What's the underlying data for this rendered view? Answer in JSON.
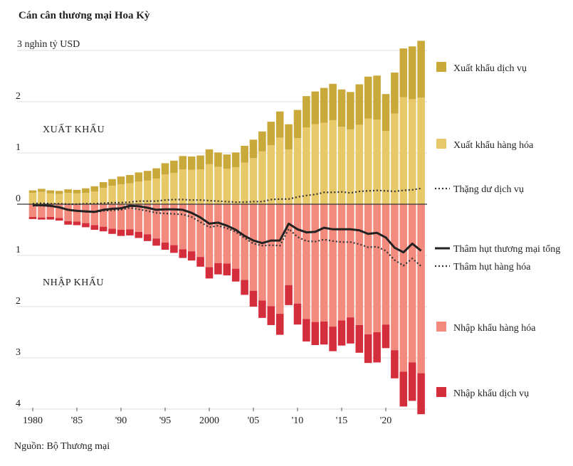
{
  "title": "Cán cân thương mại Hoa Kỳ",
  "source": "Nguồn: Bộ Thương mại",
  "colors": {
    "services_exports": "#c9a93a",
    "goods_exports": "#e8c96a",
    "goods_imports": "#f28b7e",
    "services_imports": "#d42e3c",
    "total_deficit": "#222222",
    "dotted": "#333333",
    "grid": "#dddddd",
    "zero": "#333333"
  },
  "chart_data": {
    "type": "bar",
    "unit_label": "3 nghìn tỷ USD",
    "y_ticks": [
      {
        "value": 3,
        "label": ""
      },
      {
        "value": 2,
        "label": "2"
      },
      {
        "value": 1,
        "label": "1"
      },
      {
        "value": 0,
        "label": "0"
      },
      {
        "value": -1,
        "label": "1"
      },
      {
        "value": -2,
        "label": "2"
      },
      {
        "value": -3,
        "label": "3"
      },
      {
        "value": -4,
        "label": "4"
      }
    ],
    "ylim": [
      -4.1,
      3.2
    ],
    "x_ticks": [
      {
        "year": 1980,
        "label": "1980"
      },
      {
        "year": 1985,
        "label": "'85"
      },
      {
        "year": 1990,
        "label": "'90"
      },
      {
        "year": 1995,
        "label": "'95"
      },
      {
        "year": 2000,
        "label": "2000"
      },
      {
        "year": 2005,
        "label": "'05"
      },
      {
        "year": 2010,
        "label": "'10"
      },
      {
        "year": 2015,
        "label": "'15"
      },
      {
        "year": 2020,
        "label": "'20"
      }
    ],
    "annotations": {
      "exports": "XUẤT KHẨU",
      "imports": "NHẬP KHẨU"
    },
    "years": [
      1980,
      1981,
      1982,
      1983,
      1984,
      1985,
      1986,
      1987,
      1988,
      1989,
      1990,
      1991,
      1992,
      1993,
      1994,
      1995,
      1996,
      1997,
      1998,
      1999,
      2000,
      2001,
      2002,
      2003,
      2004,
      2005,
      2006,
      2007,
      2008,
      2009,
      2010,
      2011,
      2012,
      2013,
      2014,
      2015,
      2016,
      2017,
      2018,
      2019,
      2020,
      2021,
      2022,
      2023,
      2024
    ],
    "series": [
      {
        "name": "Xuất khẩu dịch vụ",
        "key": "services_exports",
        "values": [
          0.05,
          0.06,
          0.06,
          0.06,
          0.07,
          0.07,
          0.09,
          0.1,
          0.11,
          0.13,
          0.15,
          0.16,
          0.18,
          0.19,
          0.2,
          0.22,
          0.24,
          0.26,
          0.26,
          0.27,
          0.29,
          0.28,
          0.28,
          0.29,
          0.33,
          0.36,
          0.39,
          0.46,
          0.51,
          0.49,
          0.55,
          0.61,
          0.64,
          0.68,
          0.71,
          0.73,
          0.73,
          0.79,
          0.82,
          0.86,
          0.72,
          0.8,
          0.95,
          1.03,
          1.11
        ]
      },
      {
        "name": "Xuất khẩu hàng hóa",
        "key": "goods_exports",
        "values": [
          0.22,
          0.24,
          0.21,
          0.2,
          0.22,
          0.21,
          0.22,
          0.25,
          0.32,
          0.36,
          0.39,
          0.41,
          0.44,
          0.46,
          0.5,
          0.58,
          0.61,
          0.68,
          0.67,
          0.68,
          0.78,
          0.73,
          0.69,
          0.72,
          0.81,
          0.9,
          1.03,
          1.15,
          1.3,
          1.07,
          1.29,
          1.5,
          1.56,
          1.59,
          1.64,
          1.51,
          1.46,
          1.55,
          1.67,
          1.65,
          1.43,
          1.77,
          2.09,
          2.05,
          2.08
        ]
      },
      {
        "name": "Nhập khẩu hàng hóa",
        "key": "goods_imports",
        "values": [
          0.25,
          0.26,
          0.25,
          0.27,
          0.33,
          0.34,
          0.37,
          0.41,
          0.44,
          0.48,
          0.5,
          0.49,
          0.54,
          0.59,
          0.67,
          0.75,
          0.8,
          0.88,
          0.92,
          1.03,
          1.23,
          1.15,
          1.16,
          1.26,
          1.48,
          1.69,
          1.88,
          1.99,
          2.14,
          1.58,
          1.94,
          2.24,
          2.3,
          2.29,
          2.39,
          2.27,
          2.21,
          2.36,
          2.54,
          2.5,
          2.35,
          2.85,
          3.27,
          3.09,
          3.3
        ]
      },
      {
        "name": "Nhập khẩu dịch vụ",
        "key": "services_imports",
        "values": [
          0.04,
          0.04,
          0.05,
          0.05,
          0.07,
          0.07,
          0.08,
          0.09,
          0.09,
          0.1,
          0.12,
          0.12,
          0.12,
          0.13,
          0.14,
          0.14,
          0.15,
          0.17,
          0.18,
          0.19,
          0.22,
          0.22,
          0.23,
          0.25,
          0.29,
          0.31,
          0.34,
          0.37,
          0.41,
          0.39,
          0.41,
          0.44,
          0.45,
          0.45,
          0.48,
          0.49,
          0.51,
          0.54,
          0.56,
          0.59,
          0.46,
          0.55,
          0.68,
          0.75,
          0.8
        ]
      },
      {
        "name": "Thặng dư dịch vụ",
        "key": "services_surplus",
        "style": "dotted",
        "values": [
          0.01,
          0.02,
          0.01,
          0.01,
          0.0,
          0.0,
          0.01,
          0.01,
          0.02,
          0.03,
          0.03,
          0.04,
          0.06,
          0.06,
          0.06,
          0.08,
          0.09,
          0.09,
          0.08,
          0.08,
          0.07,
          0.06,
          0.05,
          0.04,
          0.04,
          0.05,
          0.05,
          0.09,
          0.1,
          0.1,
          0.14,
          0.17,
          0.19,
          0.23,
          0.23,
          0.24,
          0.22,
          0.25,
          0.26,
          0.27,
          0.26,
          0.25,
          0.27,
          0.28,
          0.31
        ]
      },
      {
        "name": "Thâm hụt thương mại tổng",
        "key": "total_deficit",
        "style": "solid",
        "values": [
          -0.02,
          -0.02,
          -0.03,
          -0.06,
          -0.11,
          -0.13,
          -0.14,
          -0.15,
          -0.11,
          -0.09,
          -0.08,
          -0.03,
          -0.04,
          -0.07,
          -0.11,
          -0.1,
          -0.1,
          -0.11,
          -0.17,
          -0.26,
          -0.38,
          -0.36,
          -0.42,
          -0.5,
          -0.62,
          -0.71,
          -0.76,
          -0.71,
          -0.71,
          -0.38,
          -0.49,
          -0.55,
          -0.54,
          -0.46,
          -0.49,
          -0.49,
          -0.49,
          -0.51,
          -0.58,
          -0.56,
          -0.65,
          -0.85,
          -0.94,
          -0.77,
          -0.91
        ]
      },
      {
        "name": "Thâm hụt hàng hóa",
        "key": "goods_deficit",
        "style": "dotted",
        "values": [
          -0.03,
          -0.03,
          -0.04,
          -0.07,
          -0.11,
          -0.13,
          -0.15,
          -0.16,
          -0.13,
          -0.12,
          -0.11,
          -0.07,
          -0.1,
          -0.13,
          -0.17,
          -0.18,
          -0.19,
          -0.2,
          -0.25,
          -0.35,
          -0.45,
          -0.42,
          -0.47,
          -0.54,
          -0.66,
          -0.77,
          -0.81,
          -0.8,
          -0.81,
          -0.48,
          -0.64,
          -0.72,
          -0.73,
          -0.69,
          -0.72,
          -0.74,
          -0.74,
          -0.78,
          -0.84,
          -0.83,
          -0.91,
          -1.09,
          -1.2,
          -1.06,
          -1.21
        ]
      }
    ],
    "legend": [
      {
        "key": "services_exports",
        "label": "Xuất khẩu dịch vụ",
        "kind": "box"
      },
      {
        "key": "goods_exports",
        "label": "Xuất khẩu hàng hóa",
        "kind": "box"
      },
      {
        "key": "services_surplus",
        "label": "Thặng dư dịch vụ",
        "kind": "dotted"
      },
      {
        "key": "total_deficit",
        "label": "Thâm hụt thương mại tổng",
        "kind": "solid"
      },
      {
        "key": "goods_deficit",
        "label": "Thâm hụt hàng hóa",
        "kind": "dotted"
      },
      {
        "key": "goods_imports",
        "label": "Nhập khẩu hàng hóa",
        "kind": "box"
      },
      {
        "key": "services_imports",
        "label": "Nhập khẩu dịch vụ",
        "kind": "box"
      }
    ]
  }
}
